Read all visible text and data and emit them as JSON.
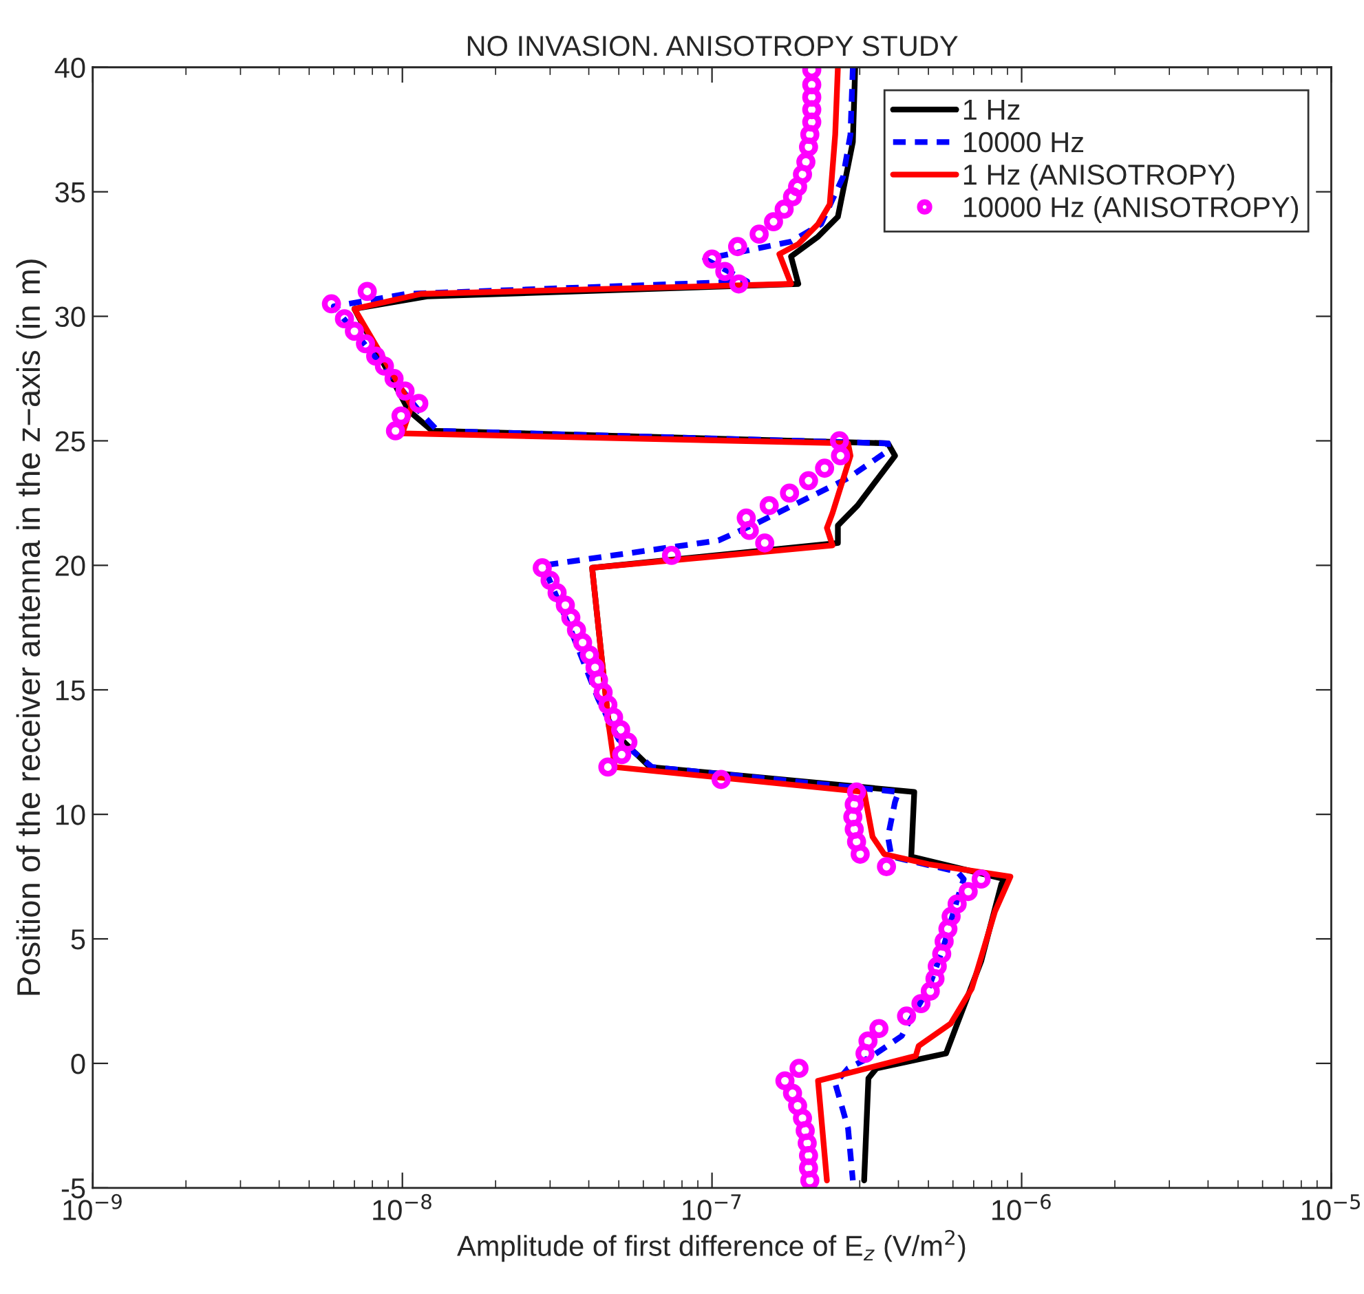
{
  "chart_data": {
    "type": "line",
    "title": "NO INVASION. ANISOTROPY STUDY",
    "xlabel": "Amplitude of first difference of E$_{z}$ (V/m$^{2}$)",
    "ylabel": "Position of the receiver antenna in the z−axis (in m)",
    "log": "x",
    "grid": false,
    "legend": "top right",
    "xlim": [
      1e-09,
      1e-05
    ],
    "ylim": [
      -5,
      40
    ],
    "xticks": [
      {
        "value": 1e-09,
        "label": "10$^{−9}$"
      },
      {
        "value": 1e-08,
        "label": "10$^{−8}$"
      },
      {
        "value": 1e-07,
        "label": "10$^{−7}$"
      },
      {
        "value": 1e-06,
        "label": "10$^{−6}$"
      },
      {
        "value": 1e-05,
        "label": "10$^{−5}$"
      }
    ],
    "yticks": [
      -5,
      0,
      5,
      10,
      15,
      20,
      25,
      30,
      35,
      40
    ],
    "series": [
      {
        "name": "1 Hz",
        "color": "#000000",
        "line_style": "solid",
        "marker": "none",
        "x": [
          2.9e-07,
          2.85e-07,
          2.55e-07,
          2.2e-07,
          1.8e-07,
          1.9e-07,
          1.2e-08,
          7e-09,
          1.05e-08,
          1.25e-08,
          3.7e-07,
          3.9e-07,
          2.95e-07,
          2.55e-07,
          2.55e-07,
          4.1e-08,
          4.65e-08,
          5.2e-08,
          6.3e-08,
          4.5e-07,
          4.4e-07,
          8.8e-07,
          8.6e-07,
          7.4e-07,
          6.2e-07,
          5.7e-07,
          3.4e-07,
          3.2e-07,
          3.1e-07
        ],
        "values": [
          40,
          37,
          34,
          33.2,
          32.4,
          31.3,
          30.8,
          30.3,
          26.2,
          25.4,
          24.9,
          24.4,
          22.4,
          21.6,
          20.9,
          19.9,
          13.5,
          12.9,
          11.9,
          10.9,
          8.3,
          7.4,
          7.2,
          4.1,
          1.6,
          0.4,
          -0.2,
          -0.6,
          -4.7
        ]
      },
      {
        "name": "10000 Hz",
        "color": "#0000ff",
        "line_style": "dashed",
        "marker": "none",
        "x": [
          2.85e-07,
          2.8e-07,
          2.65e-07,
          2.25e-07,
          1.8e-07,
          9.5e-08,
          1.3e-07,
          1.03e-08,
          6e-09,
          1.15e-08,
          1.3e-08,
          3.7e-07,
          3.7e-07,
          2.75e-07,
          1.4e-07,
          1.05e-07,
          2.85e-08,
          3.5e-08,
          4.3e-08,
          5e-08,
          6.4e-08,
          4e-07,
          3.9e-07,
          3.7e-07,
          3.8e-07,
          6.2e-07,
          6.5e-07,
          6.2e-07,
          5.6e-07,
          5e-07,
          4.3e-07,
          4.1e-07,
          3.3e-07,
          2.75e-07,
          2.5e-07,
          2.75e-07,
          2.85e-07
        ],
        "values": [
          40,
          37.3,
          35.6,
          33.7,
          33.0,
          32.3,
          31.4,
          30.9,
          30.4,
          26.1,
          25.4,
          24.9,
          24.6,
          23.5,
          21.7,
          21.0,
          20.0,
          17.4,
          14.6,
          13.0,
          11.9,
          10.9,
          10.5,
          9.1,
          8.3,
          7.7,
          7.4,
          6.6,
          4.7,
          3.0,
          1.6,
          1.1,
          0.3,
          -0.2,
          -0.8,
          -2.6,
          -4.7
        ]
      },
      {
        "name": "1 Hz (ANISOTROPY)",
        "color": "#ff0000",
        "line_style": "solid",
        "marker": "none",
        "x": [
          2.55e-07,
          2.5e-07,
          2.4e-07,
          2.2e-07,
          1.9e-07,
          1.65e-07,
          1.8e-07,
          1.15e-08,
          7e-09,
          1.07e-08,
          1e-08,
          2.75e-07,
          2.8e-07,
          2.45e-07,
          2.35e-07,
          2.45e-07,
          4.1e-08,
          4.65e-08,
          4.85e-08,
          3.1e-07,
          3.3e-07,
          3.6e-07,
          5e-07,
          9.2e-07,
          8.2e-07,
          6.9e-07,
          5.9e-07,
          4.65e-07,
          4.55e-07,
          2.2e-07,
          2.35e-07
        ],
        "values": [
          40,
          37.3,
          34.5,
          33.7,
          32.9,
          32.5,
          31.3,
          30.9,
          30.3,
          26.4,
          25.3,
          24.9,
          24.4,
          22.1,
          21.5,
          20.8,
          19.9,
          13.5,
          11.9,
          10.9,
          9.1,
          8.4,
          8.0,
          7.5,
          6.1,
          3.0,
          1.6,
          0.7,
          0.3,
          -0.7,
          -4.7
        ]
      },
      {
        "name": "10000 Hz (ANISOTROPY)",
        "type": "scatter",
        "color": "#ff00ff",
        "marker": "circle",
        "x": [
          2.1e-07,
          2.1e-07,
          2.1e-07,
          2.1e-07,
          2.1e-07,
          2.07e-07,
          2.05e-07,
          2.01e-07,
          1.96e-07,
          1.89e-07,
          1.82e-07,
          1.71e-07,
          1.58e-07,
          1.42e-07,
          1.21e-07,
          1e-07,
          1.1e-07,
          1.22e-07,
          7.7e-09,
          5.9e-09,
          6.5e-09,
          7e-09,
          7.6e-09,
          8.2e-09,
          8.75e-09,
          9.4e-09,
          1.02e-08,
          1.13e-08,
          9.9e-09,
          9.5e-09,
          2.58e-07,
          2.6e-07,
          2.31e-07,
          2.05e-07,
          1.78e-07,
          1.53e-07,
          1.29e-07,
          1.32e-07,
          1.48e-07,
          7.4e-08,
          2.83e-08,
          3e-08,
          3.16e-08,
          3.36e-08,
          3.5e-08,
          3.65e-08,
          3.82e-08,
          4.02e-08,
          4.19e-08,
          4.3e-08,
          4.45e-08,
          4.61e-08,
          4.81e-08,
          5.07e-08,
          5.35e-08,
          5.11e-08,
          4.61e-08,
          1.07e-07,
          2.93e-07,
          2.88e-07,
          2.85e-07,
          2.88e-07,
          2.93e-07,
          3.01e-07,
          3.66e-07,
          7.4e-07,
          6.72e-07,
          6.19e-07,
          5.92e-07,
          5.78e-07,
          5.62e-07,
          5.52e-07,
          5.34e-07,
          5.25e-07,
          5.07e-07,
          4.73e-07,
          4.25e-07,
          3.46e-07,
          3.19e-07,
          3.12e-07,
          1.91e-07,
          1.72e-07,
          1.82e-07,
          1.89e-07,
          1.96e-07,
          2e-07,
          2.03e-07,
          2.05e-07,
          2.05e-07,
          2.07e-07
        ],
        "values": [
          39.9,
          39.3,
          38.8,
          38.3,
          37.8,
          37.3,
          36.8,
          36.2,
          35.7,
          35.2,
          34.8,
          34.3,
          33.8,
          33.3,
          32.8,
          32.3,
          31.8,
          31.3,
          31.0,
          30.5,
          29.9,
          29.4,
          28.9,
          28.4,
          28.0,
          27.5,
          27.0,
          26.5,
          26.0,
          25.4,
          25.0,
          24.4,
          23.9,
          23.4,
          22.9,
          22.4,
          21.9,
          21.4,
          20.9,
          20.4,
          19.9,
          19.4,
          18.9,
          18.4,
          17.9,
          17.4,
          16.9,
          16.4,
          15.9,
          15.4,
          14.9,
          14.4,
          13.9,
          13.4,
          12.9,
          12.4,
          11.9,
          11.4,
          10.9,
          10.4,
          9.9,
          9.4,
          8.9,
          8.4,
          7.9,
          7.4,
          6.9,
          6.4,
          5.9,
          5.4,
          4.9,
          4.4,
          3.9,
          3.4,
          2.9,
          2.4,
          1.9,
          1.4,
          0.9,
          0.4,
          -0.2,
          -0.7,
          -1.2,
          -1.7,
          -2.2,
          -2.7,
          -3.2,
          -3.7,
          -4.2,
          -4.7
        ]
      }
    ]
  }
}
